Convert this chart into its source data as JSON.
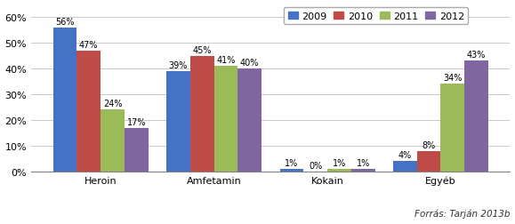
{
  "categories": [
    "Heroin",
    "Amfetamin",
    "Kokain",
    "Egyéb"
  ],
  "years": [
    "2009",
    "2010",
    "2011",
    "2012"
  ],
  "values": {
    "2009": [
      56,
      39,
      1,
      4
    ],
    "2010": [
      47,
      45,
      0,
      8
    ],
    "2011": [
      24,
      41,
      1,
      34
    ],
    "2012": [
      17,
      40,
      1,
      43
    ]
  },
  "colors": {
    "2009": "#4472C4",
    "2010": "#BE4B48",
    "2011": "#9BBB59",
    "2012": "#7F66A0"
  },
  "ylim": [
    0,
    65
  ],
  "yticks": [
    0,
    10,
    20,
    30,
    40,
    50,
    60
  ],
  "ytick_labels": [
    "0%",
    "10%",
    "20%",
    "30%",
    "40%",
    "50%",
    "60%"
  ],
  "source_text": "Forrás: Tarján 2013b",
  "background_color": "#FFFFFF",
  "bar_width": 0.21,
  "label_fontsize": 7.0,
  "tick_fontsize": 8.0,
  "legend_fontsize": 8.0,
  "source_fontsize": 7.5
}
